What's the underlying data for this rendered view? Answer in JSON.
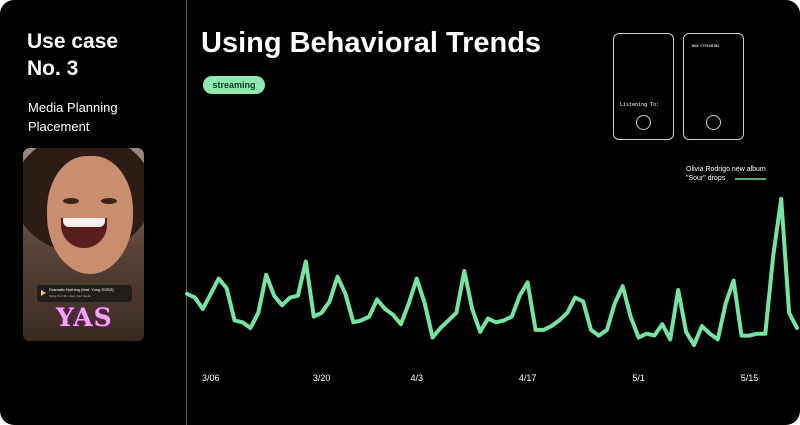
{
  "sidebar": {
    "case_title": "Use case\nNo. 3",
    "case_subtitle": "Media Planning\nPlacement",
    "photo_song_line1": "Dramatic Nothing (feat. Yung SGBZ)",
    "photo_song_line2": "Song from Mr. Harry Fan books",
    "photo_sticker": "YAS"
  },
  "header": {
    "title": "Using Behavioral Trends",
    "tag": "streaming"
  },
  "phones": [
    {
      "text": "Listening To:"
    },
    {
      "text": "NOW STREAMING"
    }
  ],
  "colors": {
    "background": "#000000",
    "accent": "#8ee8b0",
    "line": "#76e4a0",
    "text": "#ffffff"
  },
  "chart_data": {
    "type": "line",
    "title": "",
    "xlabel": "",
    "ylabel": "",
    "x_ticks": [
      "3/06",
      "3/20",
      "4/3",
      "4/17",
      "5/1",
      "5/15"
    ],
    "x_tick_index": [
      3,
      17,
      29,
      43,
      57,
      71
    ],
    "ylim": [
      0,
      100
    ],
    "grid": false,
    "legend": "none",
    "series": [
      {
        "name": "",
        "values": [
          28,
          26,
          20,
          28,
          36,
          31,
          14,
          13,
          10,
          18,
          38,
          27,
          22,
          26,
          27,
          45,
          16,
          18,
          24,
          37,
          28,
          13,
          14,
          16,
          25,
          20,
          17,
          12,
          23,
          36,
          23,
          5,
          10,
          14,
          18,
          40,
          20,
          8,
          15,
          13,
          14,
          16,
          27,
          34,
          9,
          9,
          11,
          14,
          18,
          26,
          24,
          9,
          6,
          9,
          23,
          32,
          16,
          5,
          7,
          6,
          12,
          4,
          30,
          8,
          1,
          11,
          7,
          4,
          23,
          35,
          6,
          6,
          7,
          7,
          48,
          78,
          18,
          10
        ]
      }
    ],
    "annotation": {
      "text_line1": "Olivia Rodrigo new album",
      "text_line2": "\"Sour\" drops"
    }
  }
}
